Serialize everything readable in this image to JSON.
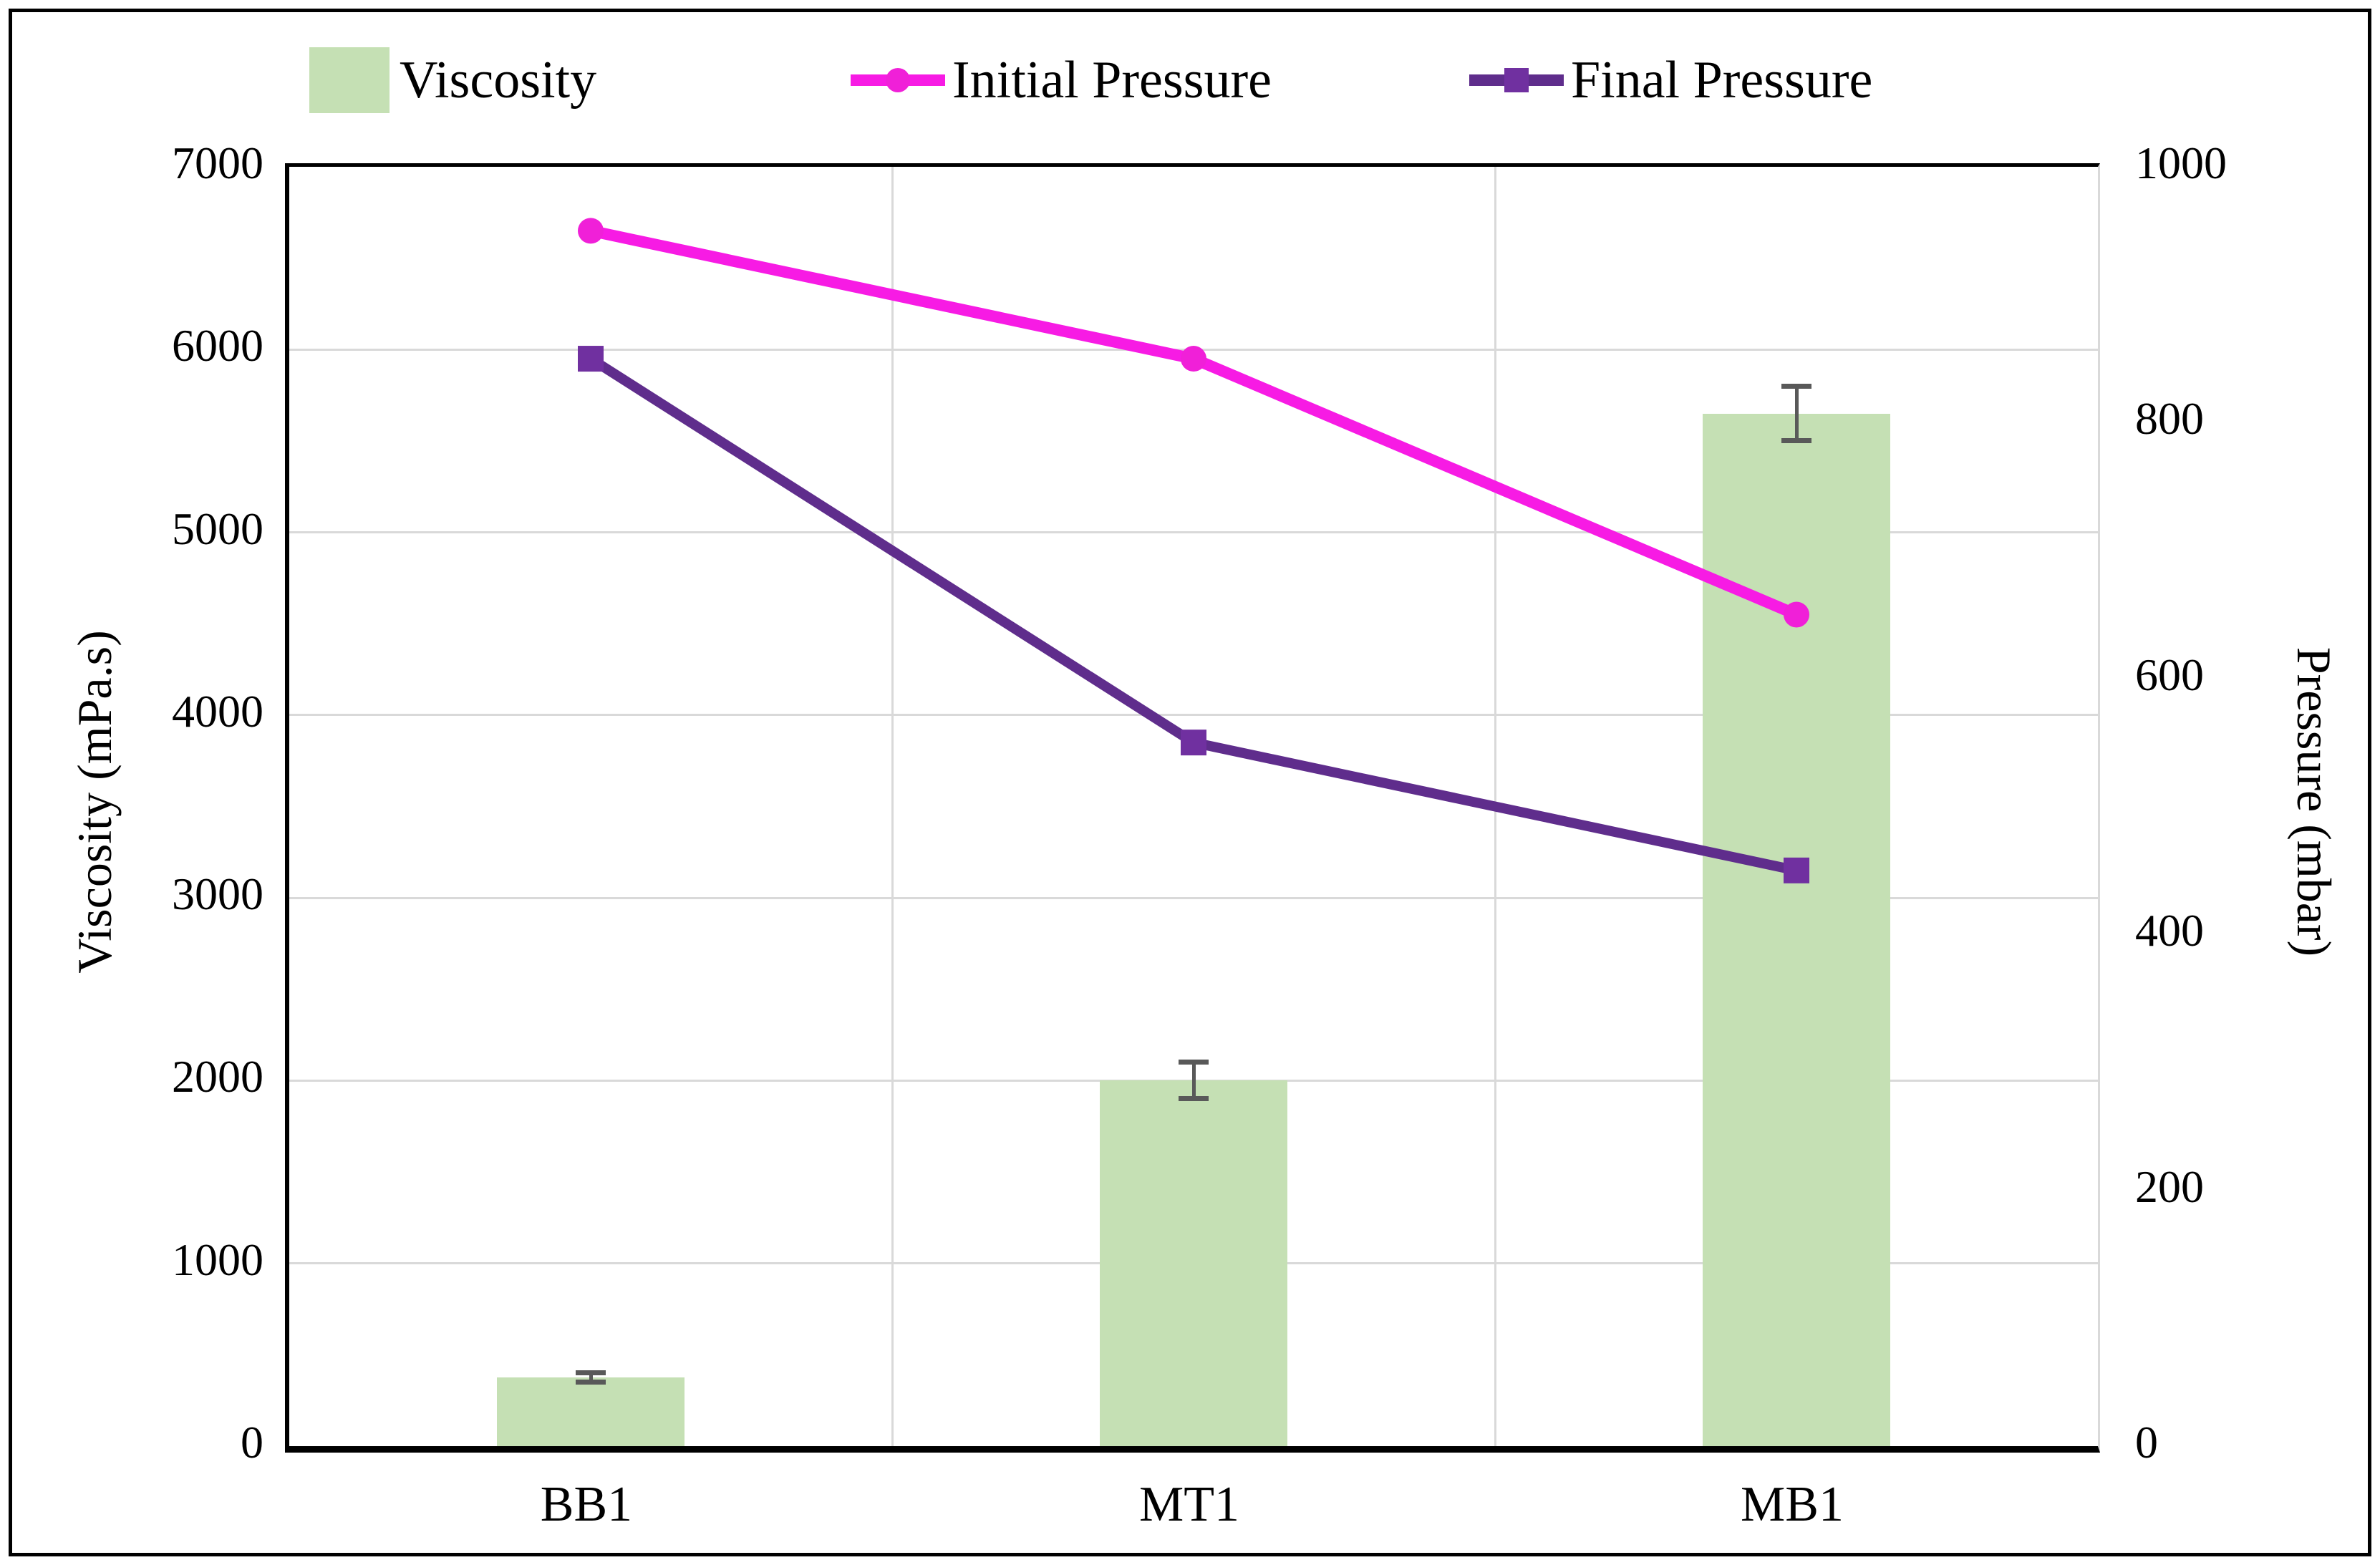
{
  "chart_data": {
    "type": "bar",
    "subtype": "bar-line-combo",
    "categories": [
      "BB1",
      "MT1",
      "MB1"
    ],
    "series": [
      {
        "name": "Viscosity",
        "type": "bar",
        "axis": "left",
        "values": [
          375,
          2000,
          5650
        ],
        "error_bars": [
          25,
          100,
          150
        ],
        "color": "#c5e0b4"
      },
      {
        "name": "Initial Pressure",
        "type": "line",
        "axis": "right",
        "marker": "circle",
        "values": [
          950,
          850,
          650
        ],
        "color": "#f71be4",
        "marker_color": "#f020d8"
      },
      {
        "name": "Final Pressure",
        "type": "line",
        "axis": "right",
        "marker": "square",
        "values": [
          850,
          550,
          450
        ],
        "color": "#5f2d8c",
        "marker_color": "#7030a0"
      }
    ],
    "left_axis": {
      "title": "Viscosity  (mPa.s)",
      "min": 0,
      "max": 7000,
      "ticks": [
        0,
        1000,
        2000,
        3000,
        4000,
        5000,
        6000,
        7000
      ]
    },
    "right_axis": {
      "title": "Pressure (mbar)",
      "min": 0,
      "max": 1000,
      "ticks": [
        0,
        200,
        400,
        600,
        800,
        1000
      ]
    },
    "grid": {
      "color": "#d9d9d9",
      "horizontal_step_left_axis": 1000,
      "vertical_category_separators": true
    },
    "error_bar_color": "#595959",
    "legend_position": "top",
    "background_color": "#ffffff",
    "frame_color": "#000000"
  }
}
